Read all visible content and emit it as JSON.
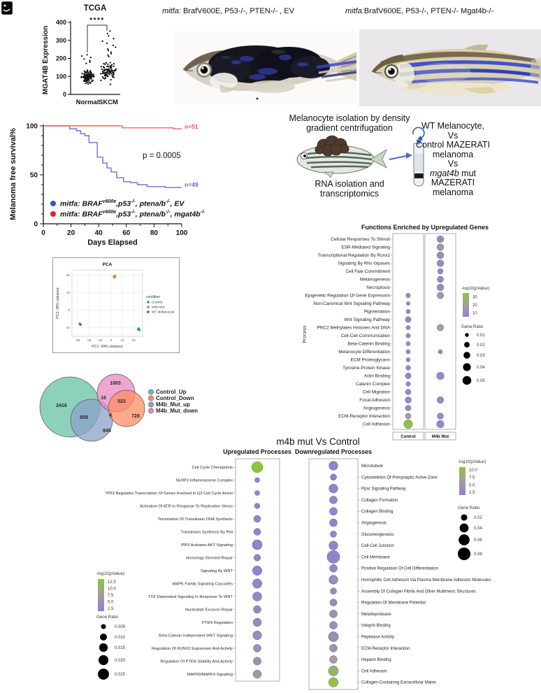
{
  "page": {
    "panel_icon": "figure-thumbnail-icon"
  },
  "fish_panels": {
    "left_label": "*{mitfa:}* BrafV600E, P53-/-, PTEN-/- , EV",
    "right_label": "*{mitfa:}*BrafV600E, P53-/-, PTEN-/- Mgat4b-/-"
  },
  "isolation": {
    "title_lines": [
      "Melanocyte isolation by density",
      "gradient centrifugation"
    ],
    "rna_lines": [
      "RNA isolation and",
      "transcriptomics"
    ],
    "comparison_lines": [
      "WT Melanocyte,",
      "Vs",
      "Control MAZERATI",
      "melanoma",
      "Vs",
      "*{mgat4b}* mut",
      "MAZERATI",
      "melanoma"
    ]
  },
  "chart_data": [
    {
      "type": "scatter",
      "title": "TCGA",
      "ylabel": "MGAT4B Expression",
      "yticks": [
        0,
        100,
        200,
        300,
        400
      ],
      "ylim": [
        0,
        400
      ],
      "categories": [
        "Normal",
        "SKCM"
      ],
      "significance": "****",
      "point_color": "#111111",
      "groups": [
        {
          "name": "Normal",
          "n_points": 115,
          "center": 97,
          "spread": 18,
          "min": 58,
          "max": 168,
          "outliers": [
            172,
            180,
            188,
            196,
            205,
            213,
            220
          ]
        },
        {
          "name": "SKCM",
          "n_points": 85,
          "center": 126,
          "spread": 26,
          "min": 45,
          "max": 205,
          "outliers": [
            210,
            218,
            226,
            235,
            244,
            252,
            262,
            272,
            284,
            296,
            310,
            325,
            338,
            352
          ]
        }
      ]
    },
    {
      "type": "line",
      "subtype": "kaplan-meier",
      "ylabel": "Melanoma free survival%",
      "xlabel": "Days Elapsed",
      "yticks": [
        0,
        50,
        100
      ],
      "xticks": [
        0,
        20,
        40,
        60,
        80,
        100
      ],
      "xlim": [
        0,
        100
      ],
      "ylim": [
        0,
        100
      ],
      "pvalue": "p = 0.0005",
      "series": [
        {
          "label": "mitfa: BRAF^{v600e},p53^{-/-}, ptena/b^{-/-}, EV",
          "n_label": "n=49",
          "line_color": "#6673E0",
          "marker_color": "#3A5BA9",
          "steps": [
            [
              0,
              100
            ],
            [
              19,
              100
            ],
            [
              19,
              97
            ],
            [
              24,
              97
            ],
            [
              24,
              95
            ],
            [
              27,
              95
            ],
            [
              27,
              92
            ],
            [
              30,
              92
            ],
            [
              30,
              90
            ],
            [
              33,
              90
            ],
            [
              33,
              83
            ],
            [
              39,
              83
            ],
            [
              39,
              68
            ],
            [
              43,
              68
            ],
            [
              43,
              62
            ],
            [
              46,
              62
            ],
            [
              46,
              57
            ],
            [
              49,
              57
            ],
            [
              49,
              53
            ],
            [
              53,
              53
            ],
            [
              53,
              47
            ],
            [
              58,
              47
            ],
            [
              58,
              43
            ],
            [
              63,
              43
            ],
            [
              63,
              42
            ],
            [
              68,
              42
            ],
            [
              68,
              40
            ],
            [
              75,
              40
            ],
            [
              75,
              38
            ],
            [
              88,
              38
            ],
            [
              88,
              37
            ],
            [
              100,
              37
            ]
          ]
        },
        {
          "label": "mitfa: BRAF^{v600e},p53^{-/-}, ptena/b^{-/-}, mgat4b^{-/-}",
          "n_label": "n=51",
          "line_color": "#F2655C",
          "marker_color": "#EC1C24",
          "steps": [
            [
              0,
              100
            ],
            [
              57,
              100
            ],
            [
              57,
              98
            ],
            [
              94,
              98
            ],
            [
              94,
              97
            ],
            [
              100,
              97
            ]
          ]
        }
      ]
    },
    {
      "type": "scatter",
      "title": "PCA",
      "xlabel": "PC1: 69% variance",
      "ylabel": "PC2: 28% variance",
      "xticks": [
        -30,
        -20,
        -10,
        0,
        10,
        20
      ],
      "yticks": [
        -10,
        0,
        10,
        20
      ],
      "legend_title": "condition",
      "groups": [
        {
          "name": "Control",
          "color": "#21A884",
          "points": [
            [
              24,
              -11
            ],
            [
              25.2,
              -11.4
            ],
            [
              24.6,
              -10.6
            ]
          ]
        },
        {
          "name": "M4b Mut",
          "color": "#E87D2B",
          "points": [
            [
              2.5,
              19.2
            ],
            [
              3.4,
              19.6
            ],
            [
              3,
              18.7
            ]
          ]
        },
        {
          "name": "WT Melanocyte",
          "color": "#6A5ACD",
          "points": [
            [
              -28,
              -7.8
            ],
            [
              -27.4,
              -8.3
            ]
          ]
        }
      ]
    },
    {
      "type": "venn",
      "sets": [
        {
          "label": "Control_Up",
          "color": "#66C2A5"
        },
        {
          "label": "Control_Down",
          "color": "#FC8D62"
        },
        {
          "label": "M4b_Mut_up",
          "color": "#8DA0CB"
        },
        {
          "label": "M4b_Mut_down",
          "color": "#E78AC3"
        }
      ],
      "region_counts": {
        "control_up_only": "2416",
        "m4b_mut_down_only": "1003",
        "control_up_and_m4b_mut_down": "16",
        "m4b_mut_down_and_control_down": "523",
        "control_down_only": "728",
        "control_up_and_m4b_mut_up": "958",
        "m4b_mut_up_only": "845",
        "m4b_mut_up_and_control_down": "4"
      }
    },
    {
      "type": "dotplot",
      "title": "Functions Enriched by Upregulated Genes",
      "ylabel": "Process",
      "columns": [
        "Control",
        "M4b Mut"
      ],
      "pvalue_legend": {
        "title": "-log10(pValue)",
        "ticks": [
          "30",
          "20",
          "10"
        ],
        "range": [
          5,
          35
        ]
      },
      "ratio_legend": {
        "title": "Gene Ratio",
        "ticks": [
          "0.01",
          "0.02",
          "0.03",
          "0.04",
          "0.05"
        ],
        "values": [
          0.01,
          0.02,
          0.03,
          0.04,
          0.05
        ]
      },
      "rows": [
        {
          "label": "Cellular Responses To Stimuli",
          "control": null,
          "m4b": {
            "ratio": 0.03,
            "pval": 11
          }
        },
        {
          "label": "ESR-Mediated Signaling",
          "control": null,
          "m4b": {
            "ratio": 0.03,
            "pval": 16
          }
        },
        {
          "label": "Transcriptional Regulation By Runx1",
          "control": null,
          "m4b": {
            "ratio": 0.03,
            "pval": 12
          }
        },
        {
          "label": "Signaling By Rho Gtpases",
          "control": null,
          "m4b": {
            "ratio": 0.03,
            "pval": 11
          }
        },
        {
          "label": "Cell Fate Commitment",
          "control": null,
          "m4b": {
            "ratio": 0.02,
            "pval": 10
          }
        },
        {
          "label": "Melanogenesis",
          "control": null,
          "m4b": {
            "ratio": 0.026,
            "pval": 11
          }
        },
        {
          "label": "Necroptosis",
          "control": null,
          "m4b": {
            "ratio": 0.03,
            "pval": 11
          }
        },
        {
          "label": "Epigenetic Regulation Of Gene Expression",
          "control": {
            "ratio": 0.013,
            "pval": 9
          },
          "m4b": {
            "ratio": 0.028,
            "pval": 16
          }
        },
        {
          "label": "Non-Canonical Wnt Signaling Pathway",
          "control": {
            "ratio": 0.009,
            "pval": 9
          },
          "m4b": null
        },
        {
          "label": "Pigmentation",
          "control": {
            "ratio": 0.012,
            "pval": 9
          },
          "m4b": null
        },
        {
          "label": "Wnt Signaling Pathway",
          "control": {
            "ratio": 0.022,
            "pval": 9
          },
          "m4b": null
        },
        {
          "label": "PRC2 Methylates Histones And DNA",
          "control": {
            "ratio": 0.012,
            "pval": 9
          },
          "m4b": {
            "ratio": 0.028,
            "pval": 20
          }
        },
        {
          "label": "Cell-Cell Communication",
          "control": {
            "ratio": 0.013,
            "pval": 9
          },
          "m4b": null
        },
        {
          "label": "Beta-Catenin Binding",
          "control": {
            "ratio": 0.012,
            "pval": 9
          },
          "m4b": null
        },
        {
          "label": "Melanocyte Differentiation",
          "control": {
            "ratio": 0.012,
            "pval": 9
          },
          "m4b": {
            "ratio": 0.012,
            "pval": 10
          }
        },
        {
          "label": "ECM Proteoglycans",
          "control": {
            "ratio": 0.011,
            "pval": 9
          },
          "m4b": null
        },
        {
          "label": "Tyrosine-Protein Kinase",
          "control": {
            "ratio": 0.015,
            "pval": 9
          },
          "m4b": null
        },
        {
          "label": "Actin Binding",
          "control": {
            "ratio": 0.022,
            "pval": 9
          },
          "m4b": {
            "ratio": 0.036,
            "pval": 10
          }
        },
        {
          "label": "Catenin Complex",
          "control": {
            "ratio": 0.014,
            "pval": 9
          },
          "m4b": null
        },
        {
          "label": "Cell Migration",
          "control": {
            "ratio": 0.02,
            "pval": 9
          },
          "m4b": null
        },
        {
          "label": "Focal Adhesion",
          "control": {
            "ratio": 0.025,
            "pval": 9
          },
          "m4b": {
            "ratio": 0.029,
            "pval": 10
          }
        },
        {
          "label": "Angiogenesis",
          "control": {
            "ratio": 0.021,
            "pval": 11
          },
          "m4b": null
        },
        {
          "label": "ECM-Receptor Interaction",
          "control": {
            "ratio": 0.021,
            "pval": 20
          },
          "m4b": {
            "ratio": 0.025,
            "pval": 10
          }
        },
        {
          "label": "Cell Adhesion",
          "control": {
            "ratio": 0.05,
            "pval": 32
          },
          "m4b": {
            "ratio": 0.036,
            "pval": 10
          }
        }
      ]
    },
    {
      "type": "dotplot",
      "main_title": "m4b mut Vs Control",
      "title": "Upregulated Processes",
      "pvalue_legend": {
        "title": "-log10(pValue)",
        "ticks": [
          "12.5",
          "10.0",
          "7.5",
          "5.0",
          "2.5"
        ],
        "range": [
          2.5,
          12.5
        ]
      },
      "ratio_legend": {
        "title": "Gene Ratio",
        "ticks": [
          "0.005",
          "0.010",
          "0.015",
          "0.020",
          "0.025"
        ],
        "values": [
          0.005,
          0.01,
          0.015,
          0.02,
          0.025
        ]
      },
      "rows": [
        {
          "label": "Cell Cycle Checkpoints",
          "ratio": 0.025,
          "pval": 12.5
        },
        {
          "label": "NLRP3 Inflammasome Complex",
          "ratio": 0.005,
          "pval": 3
        },
        {
          "label": "TP53 Regulates Transcription Of Genes Involved In G2 Cell Cycle Arrest",
          "ratio": 0.005,
          "pval": 3
        },
        {
          "label": "Activation Of ATR In Response To Replication Stress",
          "ratio": 0.006,
          "pval": 3
        },
        {
          "label": "Termination Of Translesion DNA Synthesis",
          "ratio": 0.01,
          "pval": 3.5
        },
        {
          "label": "Translesion Synthesis By Poli",
          "ratio": 0.01,
          "pval": 3.5
        },
        {
          "label": "PIP3 Activates AKT Signaling",
          "ratio": 0.02,
          "pval": 3
        },
        {
          "label": "Homology Directed Repair",
          "ratio": 0.009,
          "pval": 3.5
        },
        {
          "label": "Signaling By WNT",
          "ratio": 0.018,
          "pval": 3
        },
        {
          "label": "MAPK Family Signaling Cascades",
          "ratio": 0.018,
          "pval": 3.5
        },
        {
          "label": "TCF Dependent Signaling In Response To WNT",
          "ratio": 0.017,
          "pval": 3.5
        },
        {
          "label": "Nucleotide Excision Repair",
          "ratio": 0.012,
          "pval": 4
        },
        {
          "label": "PTEN Regulation",
          "ratio": 0.014,
          "pval": 4.5
        },
        {
          "label": "Beta-Catenin Independent WNT Signaling",
          "ratio": 0.016,
          "pval": 4.5
        },
        {
          "label": "Regulation Of RUNX2 Expression And Activity",
          "ratio": 0.012,
          "pval": 5
        },
        {
          "label": "Regulation Of PTEN Stability And Activity",
          "ratio": 0.013,
          "pval": 5.5
        },
        {
          "label": "MAPK6/MAPK4 Signaling",
          "ratio": 0.014,
          "pval": 6.5
        }
      ]
    },
    {
      "type": "dotplot",
      "title": "Downregulated Processes",
      "pvalue_legend": {
        "title": "-log10(pValue)",
        "ticks": [
          "10.0",
          "7.5",
          "5.0",
          "2.5"
        ],
        "range": [
          2.5,
          10.5
        ]
      },
      "ratio_legend": {
        "title": "Gene Ratio",
        "ticks": [
          "0.02",
          "0.04",
          "0.06",
          "0.08"
        ],
        "values": [
          0.02,
          0.04,
          0.06,
          0.08
        ]
      },
      "rows": [
        {
          "label": "Microtubule",
          "ratio": 0.04,
          "pval": 3
        },
        {
          "label": "Cytoskeleton Of Presynaptic Active Zone",
          "ratio": 0.02,
          "pval": 3
        },
        {
          "label": "Ppar Signaling Pathway",
          "ratio": 0.04,
          "pval": 3
        },
        {
          "label": "Collagen Formation",
          "ratio": 0.03,
          "pval": 3
        },
        {
          "label": "Collagen Binding",
          "ratio": 0.03,
          "pval": 3
        },
        {
          "label": "Angiogenesis",
          "ratio": 0.03,
          "pval": 3
        },
        {
          "label": "Gluconeogenesis",
          "ratio": 0.02,
          "pval": 3
        },
        {
          "label": "Cell-Cell Junction",
          "ratio": 0.04,
          "pval": 3
        },
        {
          "label": "Cell Membrane",
          "ratio": 0.08,
          "pval": 3
        },
        {
          "label": "Positive Regulation Of Cell Differentiation",
          "ratio": 0.03,
          "pval": 3.5
        },
        {
          "label": "Homophilic Cell Adhesion Via Plasma Membrane Adhesion Molecules",
          "ratio": 0.04,
          "pval": 4
        },
        {
          "label": "Assembly Of Collagen Fibrils And Other Multimeric Structures",
          "ratio": 0.02,
          "pval": 4
        },
        {
          "label": "Regulation Of Membrane Potential",
          "ratio": 0.025,
          "pval": 4
        },
        {
          "label": "Metalloprotease",
          "ratio": 0.03,
          "pval": 4.5
        },
        {
          "label": "Integrin Binding",
          "ratio": 0.03,
          "pval": 4.5
        },
        {
          "label": "Peptidase Activity",
          "ratio": 0.05,
          "pval": 4.5
        },
        {
          "label": "ECM-Receptor Interaction",
          "ratio": 0.03,
          "pval": 5
        },
        {
          "label": "Heparin Binding",
          "ratio": 0.03,
          "pval": 6.5
        },
        {
          "label": "Cell Adhesion",
          "ratio": 0.05,
          "pval": 8.5
        },
        {
          "label": "Collagen-Containing Extracellular Matrix",
          "ratio": 0.045,
          "pval": 10
        }
      ]
    }
  ]
}
